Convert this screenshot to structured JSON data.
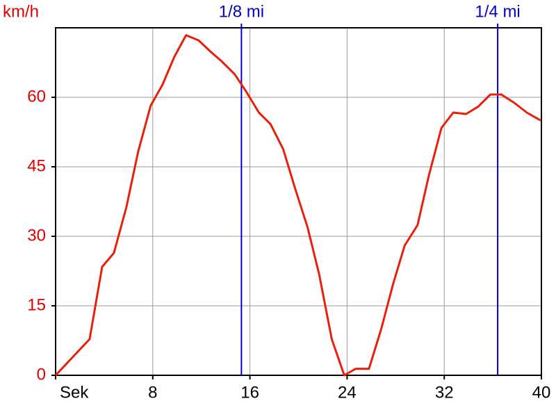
{
  "chart_data": {
    "type": "line",
    "y_label": "km/h",
    "x": [
      0,
      2.8,
      3.83,
      4.8,
      5.83,
      6.8,
      7.83,
      8.8,
      9.77,
      10.74,
      11.77,
      12.74,
      13.7,
      14.74,
      15.7,
      16.74,
      17.7,
      18.74,
      19.7,
      20.74,
      21.7,
      22.74,
      23.77,
      24.7,
      25.8,
      26.8,
      27.8,
      28.74,
      29.8,
      30.74,
      31.77,
      32.74,
      33.8,
      34.8,
      35.8,
      36.7,
      37.77,
      38.8,
      39.94
    ],
    "series": [
      {
        "color": "#e8200a",
        "values": [
          0,
          7.8,
          23.4,
          26.4,
          36.3,
          48.3,
          58.2,
          62.7,
          68.7,
          73.4,
          72.3,
          69.9,
          67.7,
          65,
          61.2,
          56.7,
          54.2,
          48.8,
          40.5,
          32,
          21.8,
          7.8,
          0,
          1.4,
          1.4,
          9.9,
          19.8,
          28,
          32.4,
          43.2,
          53.4,
          56.7,
          56.4,
          58,
          60.6,
          60.6,
          58.8,
          56.7,
          55
        ]
      }
    ],
    "xlim": [
      0,
      40
    ],
    "xticks": [
      {
        "value": 0,
        "label": "Sek"
      },
      8,
      16,
      24,
      32,
      40
    ],
    "ylim": [
      0,
      75
    ],
    "yticks": [
      0,
      15,
      30,
      45,
      60
    ],
    "grid": true,
    "markers": [
      {
        "label": "1/8 mi",
        "x": 15.3,
        "color": "#0000cc"
      },
      {
        "label": "1/4 mi",
        "x": 36.4,
        "color": "#0000cc"
      }
    ]
  }
}
